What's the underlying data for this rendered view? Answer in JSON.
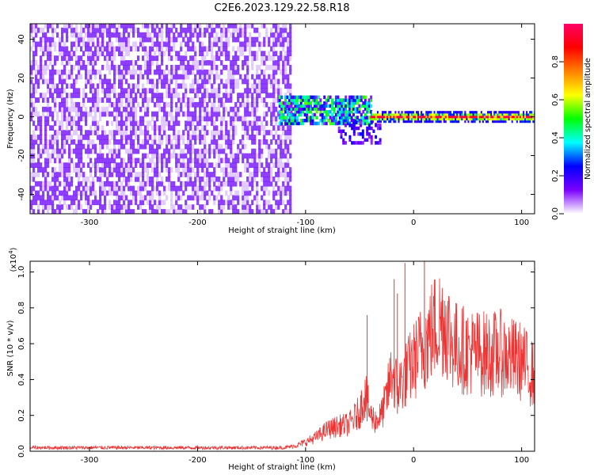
{
  "title": "C2E6.2023.129.22.58.R18",
  "chart_data": [
    {
      "type": "heatmap",
      "panel": "top",
      "xlabel": "Height of straight line (km)",
      "ylabel": "Frequency (Hz)",
      "xlim": [
        -355,
        112
      ],
      "ylim": [
        -50,
        48
      ],
      "xticks": [
        -300,
        -200,
        -100,
        0,
        100
      ],
      "yticks": [
        -40,
        -20,
        0,
        20,
        40
      ],
      "colorbar": {
        "label": "Normalized spectral amplitude",
        "range": [
          0.0,
          1.0
        ],
        "ticks": [
          "0.0",
          "0.2",
          "0.4",
          "0.6",
          "0.8"
        ],
        "colormap": [
          "#ffffff",
          "#7b00ff",
          "#0000ff",
          "#00ffff",
          "#00ff00",
          "#ffff00",
          "#ff8000",
          "#ff0000",
          "#ff0066"
        ]
      },
      "regions": [
        {
          "x_range": [
            -355,
            -115
          ],
          "y_range": [
            -50,
            48
          ],
          "amplitude": 0.1,
          "description_color": "#8a2be2"
        },
        {
          "x_range": [
            -125,
            -40
          ],
          "y_range": [
            -4,
            10
          ],
          "amplitude": 0.4
        },
        {
          "x_range": [
            -40,
            112
          ],
          "y_range": [
            -3,
            3
          ],
          "amplitude": 0.9
        }
      ]
    },
    {
      "type": "line",
      "panel": "bottom",
      "xlabel": "Height of straight line (km)",
      "ylabel": "SNR (10 * v/v)",
      "scale_note": "(x10",
      "scale_exp": "4",
      "xlim": [
        -355,
        112
      ],
      "ylim": [
        0,
        1.06
      ],
      "xticks": [
        -300,
        -200,
        -100,
        0,
        100
      ],
      "yticks": [
        "0.0",
        "0.2",
        "0.4",
        "0.6",
        "0.8",
        "1.0"
      ],
      "color": "#ee3333",
      "series": [
        {
          "x": [
            -355,
            -300,
            -250,
            -200,
            -150,
            -120,
            -110,
            -100,
            -90,
            -80,
            -70,
            -60,
            -50,
            -45,
            -40,
            -35,
            -30,
            -25,
            -20,
            -15,
            -10,
            -5,
            0,
            5,
            10,
            15,
            20,
            25,
            30,
            35,
            40,
            50,
            60,
            70,
            80,
            90,
            100,
            112
          ],
          "y": [
            0.02,
            0.02,
            0.02,
            0.02,
            0.02,
            0.02,
            0.03,
            0.05,
            0.08,
            0.12,
            0.14,
            0.15,
            0.22,
            0.33,
            0.2,
            0.17,
            0.2,
            0.3,
            0.45,
            0.35,
            0.4,
            0.45,
            0.5,
            0.55,
            0.6,
            0.65,
            0.7,
            0.73,
            0.72,
            0.62,
            0.58,
            0.56,
            0.55,
            0.54,
            0.55,
            0.52,
            0.5,
            0.42
          ]
        }
      ],
      "spikes": [
        {
          "x": -43,
          "y": 0.76
        },
        {
          "x": -18,
          "y": 0.96
        },
        {
          "x": -15,
          "y": 0.88
        },
        {
          "x": -8,
          "y": 1.05
        },
        {
          "x": 10,
          "y": 1.06
        }
      ]
    }
  ]
}
